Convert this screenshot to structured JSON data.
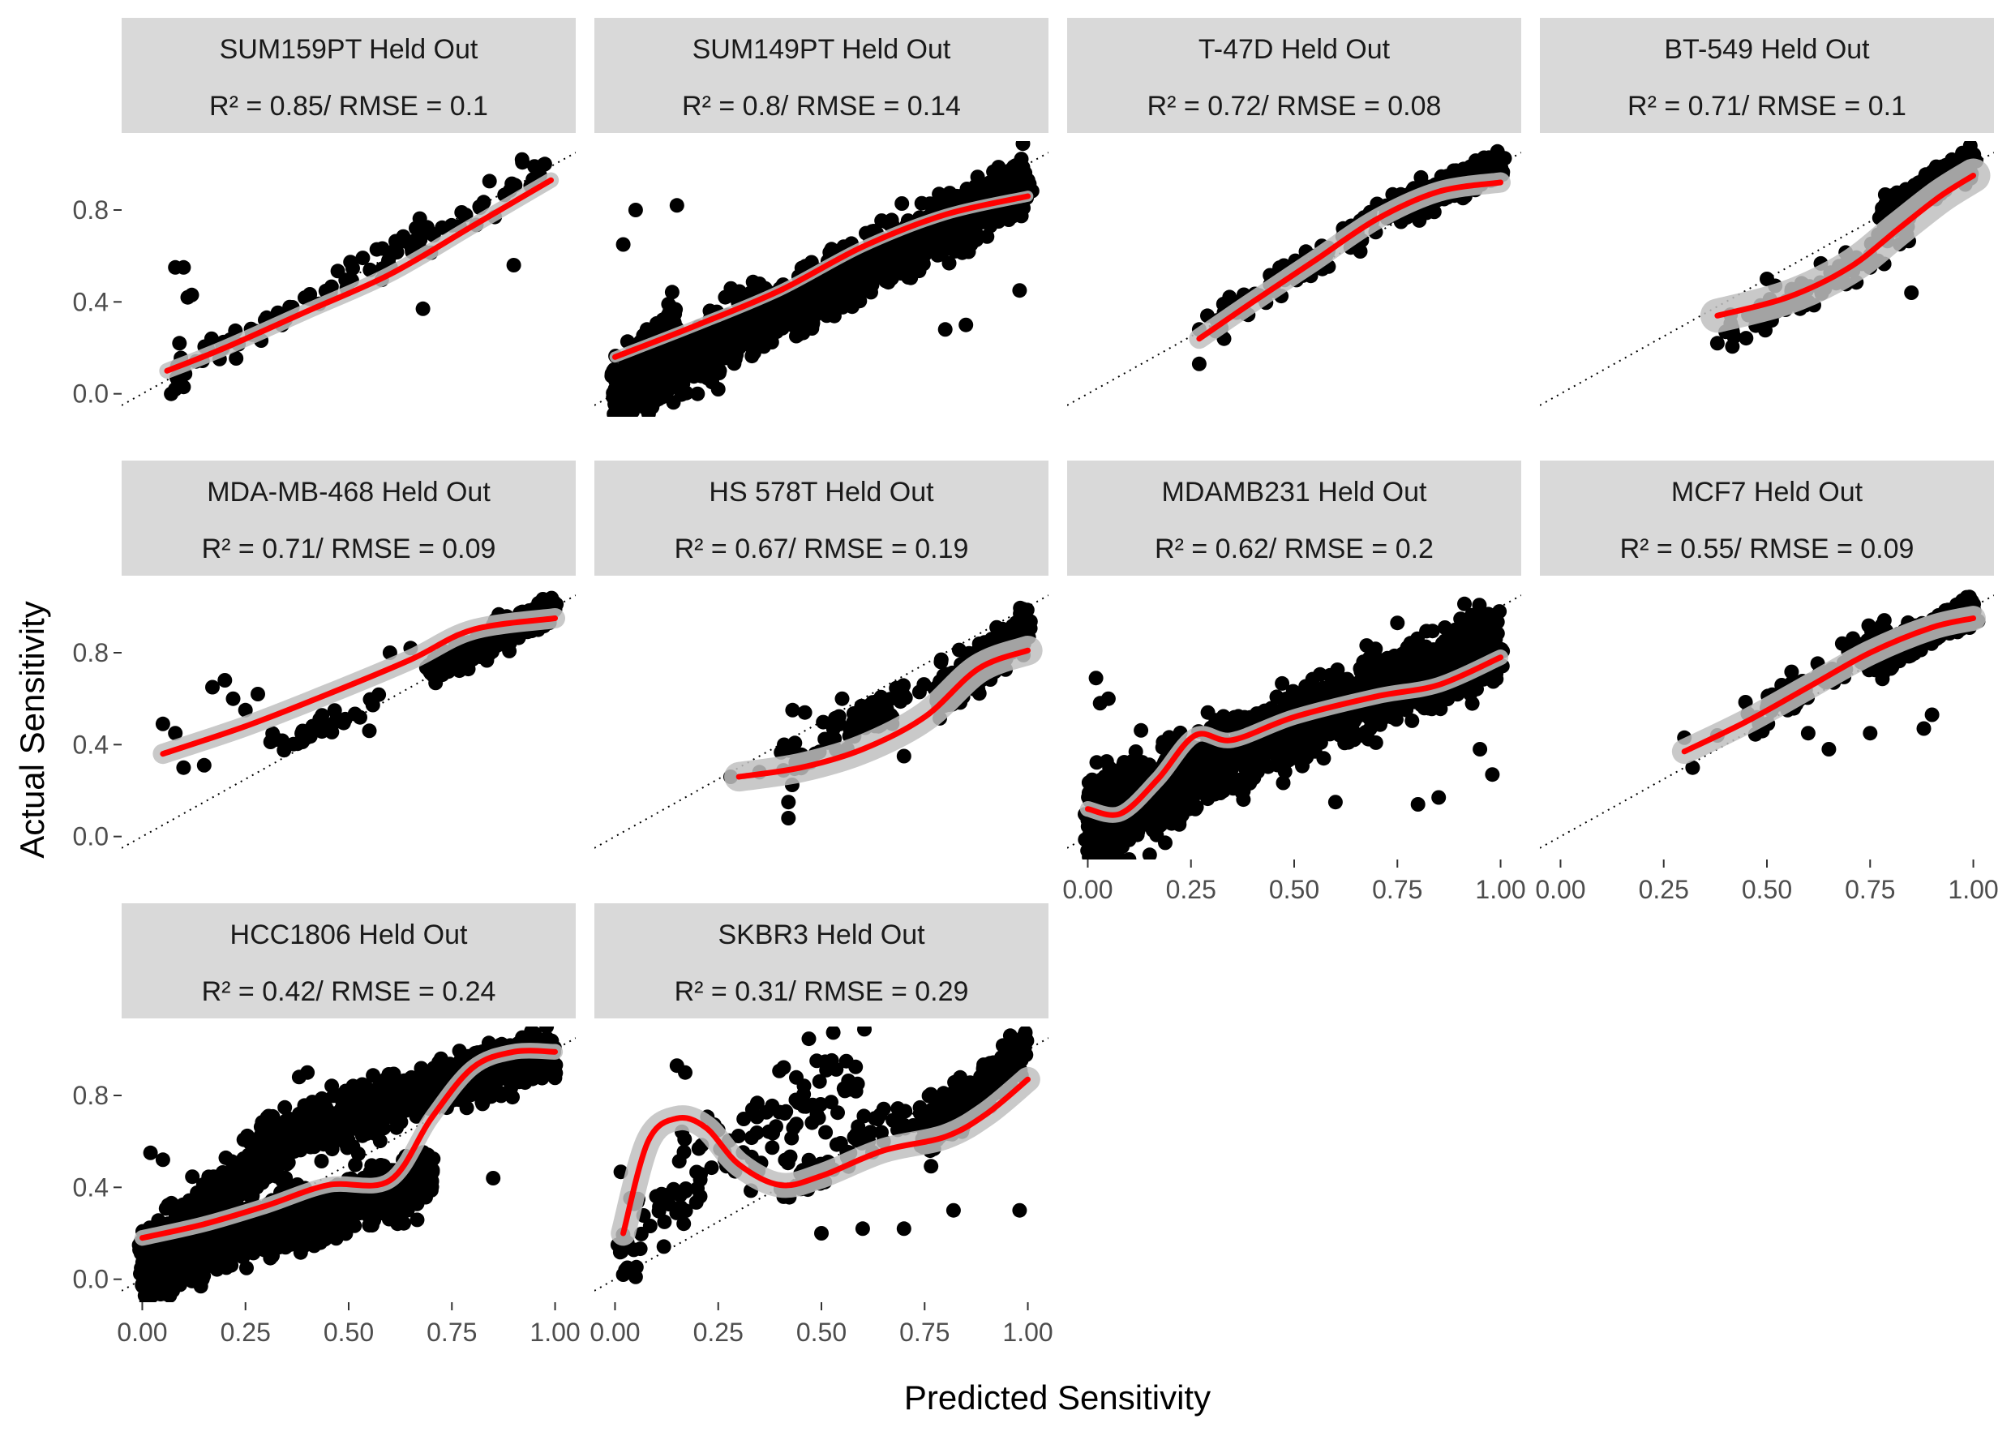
{
  "figure": {
    "xlabel": "Predicted Sensitivity",
    "ylabel": "Actual Sensitivity"
  },
  "chart_data": {
    "type": "scatter",
    "facet_layout": "4 columns x 3 rows, shared axes",
    "xlim": [
      -0.05,
      1.05
    ],
    "ylim": [
      -0.1,
      1.1
    ],
    "x_ticks": [
      "0.00",
      "0.25",
      "0.50",
      "0.75",
      "1.00"
    ],
    "x_tick_values": [
      0,
      0.25,
      0.5,
      0.75,
      1.0
    ],
    "y_ticks": [
      "0.0",
      "0.4",
      "0.8"
    ],
    "y_tick_values": [
      0,
      0.4,
      0.8
    ],
    "reference_line": "identity (y = x), dotted",
    "point_color": "#000000",
    "smooth_color": "#ff0000",
    "ribbon_color": "#bfbfbf",
    "strip_color": "#d9d9d9",
    "panels": [
      {
        "title": "SUM159PT Held Out",
        "stats": "R² = 0.85/ RMSE = 0.1",
        "has_x_axis": false,
        "has_y_axis": true,
        "clouds": [
          {
            "n": 110,
            "x": [
              0.05,
              0.98
            ],
            "y": [
              0.08,
              0.96
            ],
            "spread": 0.06
          }
        ],
        "extra_points": [
          [
            0.07,
            0.0
          ],
          [
            0.08,
            0.02
          ],
          [
            0.1,
            0.03
          ],
          [
            0.09,
            0.22
          ],
          [
            0.08,
            0.55
          ],
          [
            0.1,
            0.55
          ],
          [
            0.12,
            0.43
          ],
          [
            0.11,
            0.42
          ],
          [
            0.68,
            0.37
          ],
          [
            0.9,
            0.56
          ],
          [
            0.92,
            1.02
          ],
          [
            0.95,
            0.99
          ]
        ],
        "smooth": [
          [
            0.06,
            0.1
          ],
          [
            0.2,
            0.2
          ],
          [
            0.4,
            0.36
          ],
          [
            0.6,
            0.52
          ],
          [
            0.8,
            0.73
          ],
          [
            0.99,
            0.93
          ]
        ],
        "band": 0.02
      },
      {
        "title": "SUM149PT Held Out",
        "stats": "R² = 0.8/ RMSE = 0.14",
        "has_x_axis": false,
        "has_y_axis": false,
        "clouds": [
          {
            "n": 1500,
            "x": [
              0.0,
              1.0
            ],
            "y": [
              0.0,
              0.92
            ],
            "spread": 0.11
          },
          {
            "n": 250,
            "x": [
              0.0,
              0.15
            ],
            "y": [
              0.0,
              0.3
            ],
            "spread": 0.1
          }
        ],
        "extra_points": [
          [
            0.02,
            0.65
          ],
          [
            0.05,
            0.8
          ],
          [
            0.15,
            0.82
          ],
          [
            0.8,
            0.28
          ],
          [
            0.85,
            0.3
          ],
          [
            0.98,
            0.45
          ],
          [
            0.2,
            0.0
          ],
          [
            0.25,
            0.02
          ]
        ],
        "smooth": [
          [
            0.0,
            0.16
          ],
          [
            0.2,
            0.3
          ],
          [
            0.4,
            0.45
          ],
          [
            0.6,
            0.64
          ],
          [
            0.8,
            0.78
          ],
          [
            1.0,
            0.86
          ]
        ],
        "band": 0.01
      },
      {
        "title": "T-47D Held Out",
        "stats": "R² = 0.72/ RMSE = 0.08",
        "has_x_axis": false,
        "has_y_axis": false,
        "clouds": [
          {
            "n": 420,
            "x": [
              0.75,
              1.0
            ],
            "y": [
              0.8,
              1.0
            ],
            "spread": 0.05
          },
          {
            "n": 90,
            "x": [
              0.3,
              0.75
            ],
            "y": [
              0.3,
              0.82
            ],
            "spread": 0.06
          }
        ],
        "extra_points": [
          [
            0.27,
            0.13
          ],
          [
            0.33,
            0.24
          ],
          [
            0.27,
            0.28
          ],
          [
            0.66,
            0.62
          ],
          [
            0.55,
            0.55
          ]
        ],
        "smooth": [
          [
            0.27,
            0.24
          ],
          [
            0.4,
            0.4
          ],
          [
            0.55,
            0.58
          ],
          [
            0.7,
            0.76
          ],
          [
            0.85,
            0.88
          ],
          [
            1.0,
            0.92
          ]
        ],
        "band": 0.03
      },
      {
        "title": "BT-549 Held Out",
        "stats": "R² = 0.71/ RMSE = 0.1",
        "has_x_axis": false,
        "has_y_axis": false,
        "clouds": [
          {
            "n": 350,
            "x": [
              0.78,
              1.0
            ],
            "y": [
              0.78,
              1.02
            ],
            "spread": 0.05
          },
          {
            "n": 80,
            "x": [
              0.4,
              0.85
            ],
            "y": [
              0.25,
              0.7
            ],
            "spread": 0.08
          }
        ],
        "extra_points": [
          [
            0.38,
            0.22
          ],
          [
            0.4,
            0.27
          ],
          [
            0.5,
            0.5
          ],
          [
            0.52,
            0.47
          ],
          [
            0.6,
            0.4
          ],
          [
            0.75,
            0.55
          ],
          [
            0.85,
            0.44
          ]
        ],
        "smooth": [
          [
            0.38,
            0.34
          ],
          [
            0.55,
            0.42
          ],
          [
            0.7,
            0.55
          ],
          [
            0.82,
            0.72
          ],
          [
            0.92,
            0.86
          ],
          [
            1.0,
            0.95
          ]
        ],
        "band": 0.06
      },
      {
        "title": "MDA-MB-468 Held Out",
        "stats": "R² = 0.71/ RMSE = 0.09",
        "has_x_axis": false,
        "has_y_axis": true,
        "clouds": [
          {
            "n": 380,
            "x": [
              0.7,
              1.0
            ],
            "y": [
              0.72,
              1.0
            ],
            "spread": 0.05
          },
          {
            "n": 30,
            "x": [
              0.3,
              0.6
            ],
            "y": [
              0.4,
              0.6
            ],
            "spread": 0.04
          }
        ],
        "extra_points": [
          [
            0.05,
            0.49
          ],
          [
            0.08,
            0.45
          ],
          [
            0.1,
            0.3
          ],
          [
            0.15,
            0.31
          ],
          [
            0.17,
            0.65
          ],
          [
            0.2,
            0.68
          ],
          [
            0.22,
            0.6
          ],
          [
            0.25,
            0.55
          ],
          [
            0.28,
            0.62
          ],
          [
            0.32,
            0.43
          ],
          [
            0.55,
            0.46
          ],
          [
            0.6,
            0.8
          ],
          [
            0.65,
            0.82
          ]
        ],
        "smooth": [
          [
            0.05,
            0.36
          ],
          [
            0.25,
            0.48
          ],
          [
            0.45,
            0.62
          ],
          [
            0.65,
            0.77
          ],
          [
            0.8,
            0.9
          ],
          [
            1.0,
            0.95
          ]
        ],
        "band": 0.03
      },
      {
        "title": "HS 578T Held Out",
        "stats": "R² = 0.67/ RMSE = 0.19",
        "has_x_axis": false,
        "has_y_axis": false,
        "clouds": [
          {
            "n": 300,
            "x": [
              0.78,
              1.0
            ],
            "y": [
              0.6,
              0.92
            ],
            "spread": 0.07
          },
          {
            "n": 70,
            "x": [
              0.4,
              0.8
            ],
            "y": [
              0.3,
              0.72
            ],
            "spread": 0.08
          }
        ],
        "extra_points": [
          [
            0.28,
            0.26
          ],
          [
            0.35,
            0.28
          ],
          [
            0.42,
            0.15
          ],
          [
            0.43,
            0.55
          ],
          [
            0.46,
            0.54
          ],
          [
            0.42,
            0.08
          ],
          [
            0.55,
            0.6
          ],
          [
            0.7,
            0.35
          ]
        ],
        "smooth": [
          [
            0.3,
            0.26
          ],
          [
            0.45,
            0.3
          ],
          [
            0.6,
            0.38
          ],
          [
            0.75,
            0.52
          ],
          [
            0.88,
            0.73
          ],
          [
            1.0,
            0.81
          ]
        ],
        "band": 0.05
      },
      {
        "title": "MDAMB231 Held Out",
        "stats": "R² = 0.62/ RMSE = 0.2",
        "has_x_axis": true,
        "has_y_axis": false,
        "clouds": [
          {
            "n": 1300,
            "x": [
              0.0,
              1.0
            ],
            "y": [
              0.1,
              0.85
            ],
            "spread": 0.14
          },
          {
            "n": 300,
            "x": [
              0.0,
              0.2
            ],
            "y": [
              -0.05,
              0.2
            ],
            "spread": 0.08
          }
        ],
        "extra_points": [
          [
            0.02,
            0.69
          ],
          [
            0.03,
            0.58
          ],
          [
            0.05,
            0.6
          ],
          [
            0.6,
            0.15
          ],
          [
            0.8,
            0.14
          ],
          [
            0.85,
            0.17
          ],
          [
            0.98,
            0.27
          ],
          [
            0.95,
            0.38
          ],
          [
            0.75,
            0.93
          ],
          [
            0.1,
            -0.1
          ],
          [
            0.15,
            -0.08
          ]
        ],
        "smooth": [
          [
            0.0,
            0.12
          ],
          [
            0.08,
            0.1
          ],
          [
            0.17,
            0.25
          ],
          [
            0.26,
            0.44
          ],
          [
            0.35,
            0.42
          ],
          [
            0.5,
            0.52
          ],
          [
            0.7,
            0.61
          ],
          [
            0.85,
            0.66
          ],
          [
            1.0,
            0.78
          ]
        ],
        "band": 0.02
      },
      {
        "title": "MCF7 Held Out",
        "stats": "R² = 0.55/ RMSE = 0.09",
        "has_x_axis": true,
        "has_y_axis": false,
        "clouds": [
          {
            "n": 450,
            "x": [
              0.75,
              1.0
            ],
            "y": [
              0.75,
              1.0
            ],
            "spread": 0.05
          },
          {
            "n": 70,
            "x": [
              0.45,
              0.8
            ],
            "y": [
              0.5,
              0.9
            ],
            "spread": 0.07
          }
        ],
        "extra_points": [
          [
            0.3,
            0.43
          ],
          [
            0.32,
            0.3
          ],
          [
            0.38,
            0.44
          ],
          [
            0.5,
            0.56
          ],
          [
            0.55,
            0.55
          ],
          [
            0.6,
            0.45
          ],
          [
            0.65,
            0.38
          ],
          [
            0.75,
            0.45
          ],
          [
            0.88,
            0.47
          ],
          [
            0.9,
            0.53
          ]
        ],
        "smooth": [
          [
            0.3,
            0.37
          ],
          [
            0.45,
            0.5
          ],
          [
            0.6,
            0.65
          ],
          [
            0.75,
            0.8
          ],
          [
            0.9,
            0.91
          ],
          [
            1.0,
            0.95
          ]
        ],
        "band": 0.04
      },
      {
        "title": "HCC1806 Held Out",
        "stats": "R² = 0.42/ RMSE = 0.24",
        "has_x_axis": true,
        "has_y_axis": true,
        "clouds": [
          {
            "n": 1100,
            "x": [
              0.0,
              0.7
            ],
            "y": [
              0.05,
              0.45
            ],
            "spread": 0.1
          },
          {
            "n": 700,
            "x": [
              0.3,
              1.0
            ],
            "y": [
              0.6,
              1.0
            ],
            "spread": 0.1
          },
          {
            "n": 500,
            "x": [
              0.0,
              0.35
            ],
            "y": [
              0.05,
              0.6
            ],
            "spread": 0.12
          }
        ],
        "extra_points": [
          [
            0.02,
            0.55
          ],
          [
            0.05,
            0.52
          ],
          [
            0.85,
            0.44
          ],
          [
            0.95,
            1.07
          ],
          [
            0.98,
            1.05
          ],
          [
            0.4,
            0.9
          ],
          [
            0.38,
            0.88
          ]
        ],
        "smooth": [
          [
            0.0,
            0.18
          ],
          [
            0.15,
            0.24
          ],
          [
            0.3,
            0.32
          ],
          [
            0.45,
            0.41
          ],
          [
            0.6,
            0.43
          ],
          [
            0.7,
            0.7
          ],
          [
            0.8,
            0.92
          ],
          [
            0.9,
            0.99
          ],
          [
            1.0,
            0.99
          ]
        ],
        "band": 0.02
      },
      {
        "title": "SKBR3 Held Out",
        "stats": "R² = 0.31/ RMSE = 0.29",
        "has_x_axis": true,
        "has_y_axis": false,
        "clouds": [
          {
            "n": 280,
            "x": [
              0.75,
              1.0
            ],
            "y": [
              0.6,
              1.02
            ],
            "spread": 0.08
          },
          {
            "n": 120,
            "x": [
              0.0,
              0.6
            ],
            "y": [
              0.2,
              0.9
            ],
            "spread": 0.2
          },
          {
            "n": 80,
            "x": [
              0.4,
              0.85
            ],
            "y": [
              0.4,
              0.85
            ],
            "spread": 0.08
          }
        ],
        "extra_points": [
          [
            0.02,
            0.02
          ],
          [
            0.03,
            0.05
          ],
          [
            0.05,
            0.01
          ],
          [
            0.15,
            0.93
          ],
          [
            0.17,
            0.9
          ],
          [
            0.25,
            0.65
          ],
          [
            0.5,
            0.2
          ],
          [
            0.6,
            0.22
          ],
          [
            0.7,
            0.22
          ],
          [
            0.82,
            0.3
          ],
          [
            0.98,
            0.3
          ]
        ],
        "smooth": [
          [
            0.02,
            0.2
          ],
          [
            0.08,
            0.6
          ],
          [
            0.15,
            0.7
          ],
          [
            0.22,
            0.66
          ],
          [
            0.3,
            0.5
          ],
          [
            0.4,
            0.41
          ],
          [
            0.5,
            0.45
          ],
          [
            0.65,
            0.56
          ],
          [
            0.8,
            0.62
          ],
          [
            0.9,
            0.72
          ],
          [
            1.0,
            0.87
          ]
        ],
        "band": 0.04
      }
    ]
  }
}
